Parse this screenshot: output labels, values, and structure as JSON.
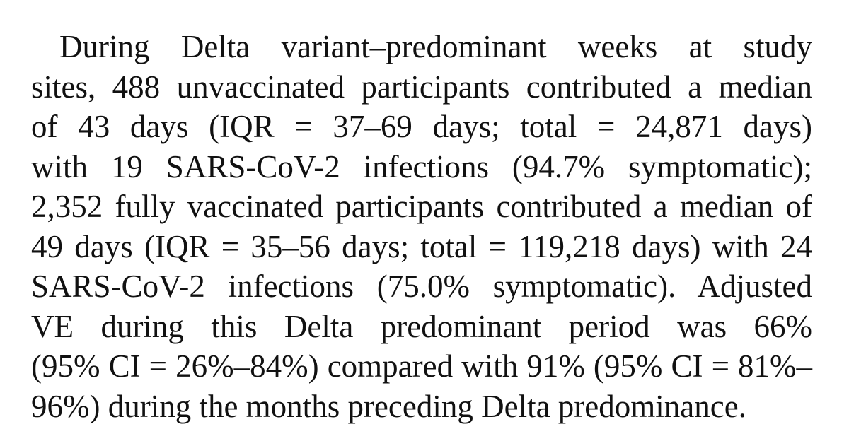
{
  "paragraph": {
    "lines": [
      "During Delta variant–predominant weeks at study",
      "sites, 488 unvaccinated participants contributed a median",
      "of 43 days (IQR = 37–69 days; total = 24,871 days)",
      "with 19 SARS-CoV-2 infections (94.7% symptomatic);",
      "2,352 fully vaccinated participants contributed a median of",
      "49 days (IQR = 35–56 days; total = 119,218 days) with 24",
      "SARS-CoV-2 infections (75.0% symptomatic). Adjusted",
      "VE during this Delta predominant period was 66%",
      "(95% CI = 26%–84%) compared with 91% (95% CI = 81%–",
      "96%) during the months preceding Delta predominance."
    ]
  }
}
